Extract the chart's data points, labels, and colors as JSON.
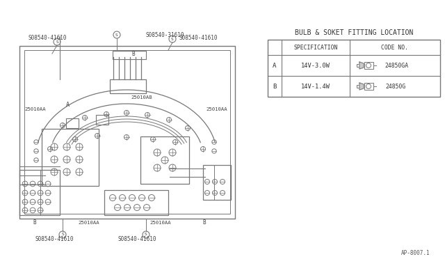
{
  "bg_color": "#ffffff",
  "line_color": "#777777",
  "title": "BULB & SOKET FITTING LOCATION",
  "row_A_label": "A",
  "row_A_spec": "14V-3.0W",
  "row_A_code": "24850GA",
  "row_B_label": "B",
  "row_B_spec": "14V-1.4W",
  "row_B_code": "24850G",
  "footer_text": "AP-8007.1",
  "label_s31610_top": "S08540-31610",
  "label_s41610_topleft": "S08540-41610",
  "label_s41610_topright": "S08540-41610",
  "label_s41610_botleft": "S08540-41610",
  "label_s41610_botmid": "S08540-41610",
  "label_25010AB": "25010AB",
  "label_25010AA_left": "25010AA",
  "label_25010AA_right": "25010AA",
  "label_25010AA_botleft": "25010AA",
  "label_25010AA_botmid": "25010AA",
  "label_B_top": "B",
  "label_B_botleft": "B",
  "label_B_botright": "B",
  "label_A_left": "A"
}
